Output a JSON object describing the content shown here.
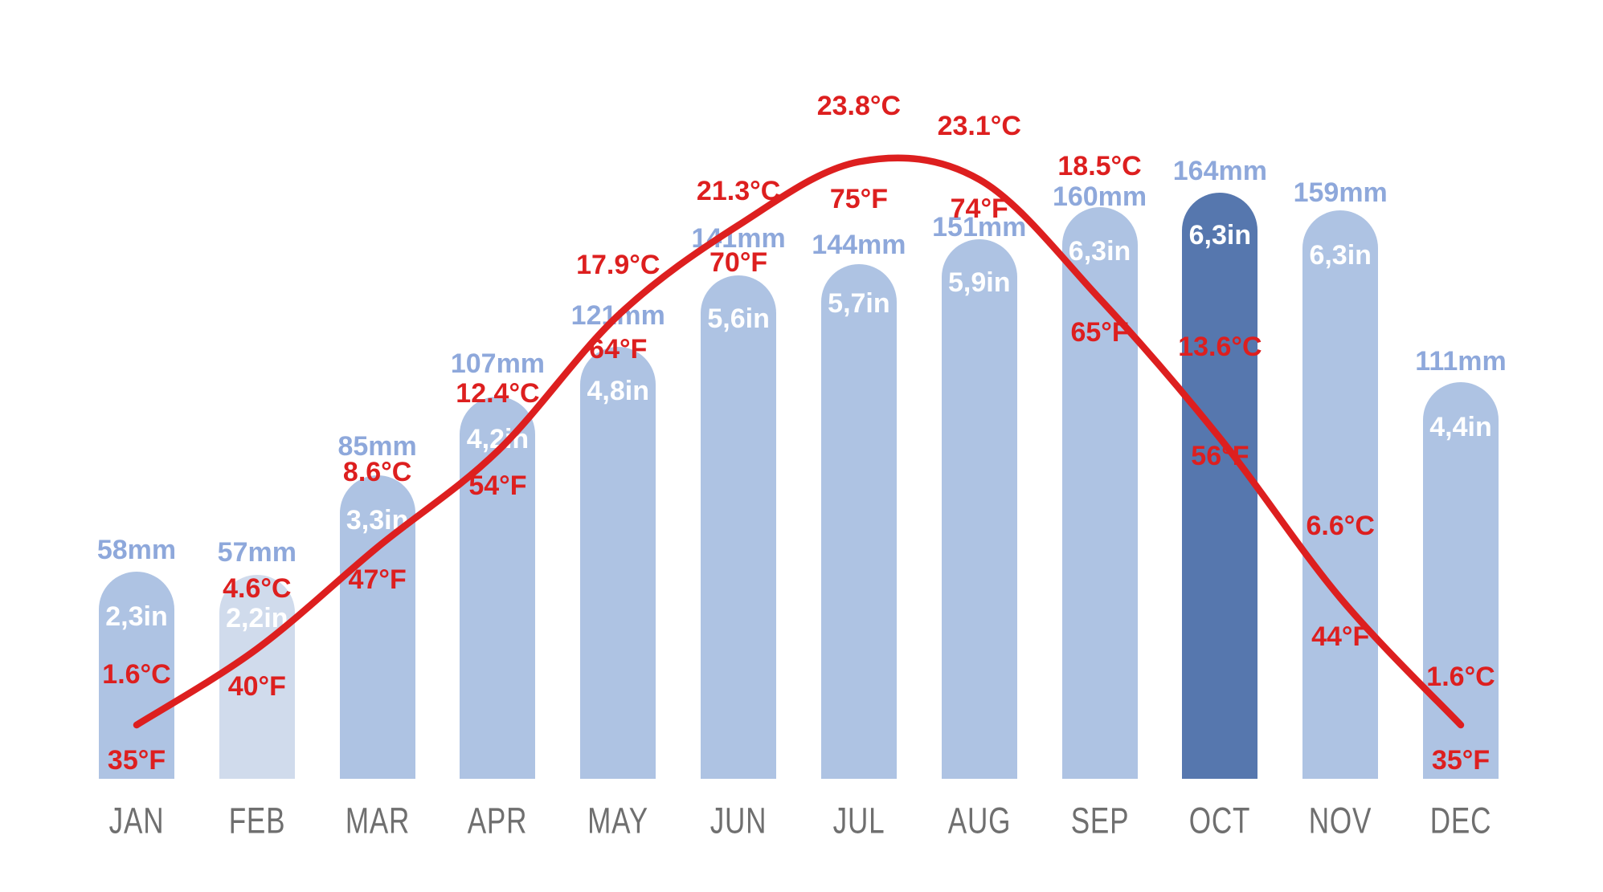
{
  "chart_data": {
    "type": "bar+line",
    "title": "",
    "categories": [
      "JAN",
      "FEB",
      "MAR",
      "APR",
      "MAY",
      "JUN",
      "JUL",
      "AUG",
      "SEP",
      "OCT",
      "NOV",
      "DEC"
    ],
    "series": [
      {
        "name": "precipitation",
        "unit": "mm",
        "values": [
          58,
          57,
          85,
          107,
          121,
          141,
          144,
          151,
          160,
          164,
          159,
          111
        ]
      },
      {
        "name": "precipitation",
        "unit": "in",
        "values": [
          2.3,
          2.2,
          3.3,
          4.2,
          4.8,
          5.6,
          5.7,
          5.9,
          6.3,
          6.3,
          6.3,
          4.4
        ]
      },
      {
        "name": "temperature",
        "unit": "°C",
        "values": [
          1.6,
          4.6,
          8.6,
          12.4,
          17.9,
          21.3,
          23.8,
          23.1,
          18.5,
          13.6,
          6.6,
          1.6
        ]
      },
      {
        "name": "temperature",
        "unit": "°F",
        "values": [
          35,
          40,
          47,
          54,
          64,
          70,
          75,
          74,
          65,
          56,
          44,
          35
        ]
      }
    ],
    "legend": "none",
    "grid": "off",
    "axes": "none (direct data labels)",
    "months": [
      {
        "name": "JAN",
        "precip_mm": 58,
        "mm_label": "58mm",
        "in_label": "2,3in",
        "temp_c": 1.6,
        "c_label": "1.6°C",
        "temp_f": 35,
        "f_label": "35°F",
        "bar_style": "default"
      },
      {
        "name": "FEB",
        "precip_mm": 57,
        "mm_label": "57mm",
        "in_label": "2,2in",
        "temp_c": 4.6,
        "c_label": "4.6°C",
        "temp_f": 40,
        "f_label": "40°F",
        "bar_style": "light"
      },
      {
        "name": "MAR",
        "precip_mm": 85,
        "mm_label": "85mm",
        "in_label": "3,3in",
        "temp_c": 8.6,
        "c_label": "8.6°C",
        "temp_f": 47,
        "f_label": "47°F",
        "bar_style": "default"
      },
      {
        "name": "APR",
        "precip_mm": 107,
        "mm_label": "107mm",
        "in_label": "4,2in",
        "temp_c": 12.4,
        "c_label": "12.4°C",
        "temp_f": 54,
        "f_label": "54°F",
        "bar_style": "default"
      },
      {
        "name": "MAY",
        "precip_mm": 121,
        "mm_label": "121mm",
        "in_label": "4,8in",
        "temp_c": 17.9,
        "c_label": "17.9°C",
        "temp_f": 64,
        "f_label": "64°F",
        "bar_style": "default"
      },
      {
        "name": "JUN",
        "precip_mm": 141,
        "mm_label": "141mm",
        "in_label": "5,6in",
        "temp_c": 21.3,
        "c_label": "21.3°C",
        "temp_f": 70,
        "f_label": "70°F",
        "bar_style": "default"
      },
      {
        "name": "JUL",
        "precip_mm": 144,
        "mm_label": "144mm",
        "in_label": "5,7in",
        "temp_c": 23.8,
        "c_label": "23.8°C",
        "temp_f": 75,
        "f_label": "75°F",
        "bar_style": "default"
      },
      {
        "name": "AUG",
        "precip_mm": 151,
        "mm_label": "151mm",
        "in_label": "5,9in",
        "temp_c": 23.1,
        "c_label": "23.1°C",
        "temp_f": 74,
        "f_label": "74°F",
        "bar_style": "default"
      },
      {
        "name": "SEP",
        "precip_mm": 160,
        "mm_label": "160mm",
        "in_label": "6,3in",
        "temp_c": 18.5,
        "c_label": "18.5°C",
        "temp_f": 65,
        "f_label": "65°F",
        "bar_style": "default"
      },
      {
        "name": "OCT",
        "precip_mm": 164,
        "mm_label": "164mm",
        "in_label": "6,3in",
        "temp_c": 13.6,
        "c_label": "13.6°C",
        "temp_f": 56,
        "f_label": "56°F",
        "bar_style": "dark"
      },
      {
        "name": "NOV",
        "precip_mm": 159,
        "mm_label": "159mm",
        "in_label": "6,3in",
        "temp_c": 6.6,
        "c_label": "6.6°C",
        "temp_f": 44,
        "f_label": "44°F",
        "bar_style": "default"
      },
      {
        "name": "DEC",
        "precip_mm": 111,
        "mm_label": "111mm",
        "in_label": "4,4in",
        "temp_c": 1.6,
        "c_label": "1.6°C",
        "temp_f": 35,
        "f_label": "35°F",
        "bar_style": "default"
      }
    ],
    "colors": {
      "bar_default": "#aec3e3",
      "bar_min_highlight": "#d0dbec",
      "bar_max_highlight": "#5677ae",
      "mm_label_text": "#8ea8db",
      "in_label_text": "#ffffff",
      "temperature_red": "#dd1f1f",
      "month_label_gray": "#6f6f6f",
      "background": "#ffffff"
    }
  }
}
